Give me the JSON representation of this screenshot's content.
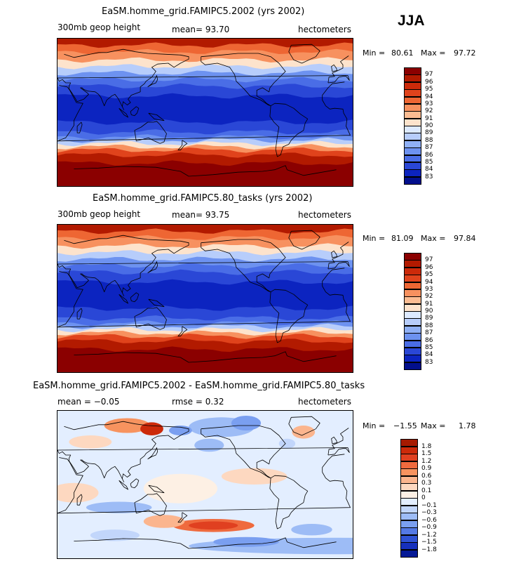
{
  "season": "JJA",
  "panels": [
    {
      "title": "EaSM.homme_grid.FAMIPC5.2002 (yrs 2002)",
      "left_label": "300mb geop height",
      "center_label": "mean=   93.70",
      "units": "hectometers",
      "min_label": "Min =",
      "min_value": "80.61",
      "max_label": "Max =",
      "max_value": "97.72",
      "levels": [
        "97",
        "96",
        "95",
        "94",
        "93",
        "92",
        "91",
        "90",
        "89",
        "88",
        "87",
        "86",
        "85",
        "84",
        "83"
      ],
      "colors": [
        "#8b0000",
        "#b21a00",
        "#cc2a0a",
        "#e0431c",
        "#ee6633",
        "#f7915f",
        "#fbbc92",
        "#fde3cc",
        "#ddeaff",
        "#b7cdfb",
        "#8fb0f6",
        "#6d92f0",
        "#4a6de6",
        "#2a47d6",
        "#0c24c0",
        "#020f8c"
      ],
      "bands": [
        {
          "lat": 90,
          "v": 1
        },
        {
          "lat": 82,
          "v": 4
        },
        {
          "lat": 74,
          "v": 5
        },
        {
          "lat": 64,
          "v": 7
        },
        {
          "lat": 56,
          "v": 9
        },
        {
          "lat": 48,
          "v": 11
        },
        {
          "lat": 40,
          "v": 12
        },
        {
          "lat": 32,
          "v": 13
        },
        {
          "lat": 20,
          "v": 14
        },
        {
          "lat": -12,
          "v": 13
        },
        {
          "lat": -24,
          "v": 12
        },
        {
          "lat": -30,
          "v": 11
        },
        {
          "lat": -34,
          "v": 9
        },
        {
          "lat": -38,
          "v": 7
        },
        {
          "lat": -42,
          "v": 5
        },
        {
          "lat": -46,
          "v": 3
        },
        {
          "lat": -52,
          "v": 1
        },
        {
          "lat": -62,
          "v": 0
        }
      ]
    },
    {
      "title": "EaSM.homme_grid.FAMIPC5.80_tasks (yrs 2002)",
      "left_label": "300mb geop height",
      "center_label": "mean=   93.75",
      "units": "hectometers",
      "min_label": "Min =",
      "min_value": "81.09",
      "max_label": "Max =",
      "max_value": "97.84",
      "levels": [
        "97",
        "96",
        "95",
        "94",
        "93",
        "92",
        "91",
        "90",
        "89",
        "88",
        "87",
        "86",
        "85",
        "84",
        "83"
      ],
      "colors": [
        "#8b0000",
        "#b21a00",
        "#cc2a0a",
        "#e0431c",
        "#ee6633",
        "#f7915f",
        "#fbbc92",
        "#fde3cc",
        "#ddeaff",
        "#b7cdfb",
        "#8fb0f6",
        "#6d92f0",
        "#4a6de6",
        "#2a47d6",
        "#0c24c0",
        "#020f8c"
      ],
      "bands": [
        {
          "lat": 90,
          "v": 1
        },
        {
          "lat": 82,
          "v": 4
        },
        {
          "lat": 74,
          "v": 5
        },
        {
          "lat": 64,
          "v": 7
        },
        {
          "lat": 56,
          "v": 9
        },
        {
          "lat": 48,
          "v": 11
        },
        {
          "lat": 40,
          "v": 12
        },
        {
          "lat": 32,
          "v": 13
        },
        {
          "lat": 20,
          "v": 14
        },
        {
          "lat": -12,
          "v": 13
        },
        {
          "lat": -24,
          "v": 12
        },
        {
          "lat": -30,
          "v": 11
        },
        {
          "lat": -34,
          "v": 9
        },
        {
          "lat": -38,
          "v": 7
        },
        {
          "lat": -42,
          "v": 5
        },
        {
          "lat": -46,
          "v": 3
        },
        {
          "lat": -52,
          "v": 1
        },
        {
          "lat": -62,
          "v": 0
        }
      ]
    },
    {
      "title": "EaSM.homme_grid.FAMIPC5.2002 - EaSM.homme_grid.FAMIPC5.80_tasks",
      "left_label": "mean =  −0.05",
      "center_label": "rmse =    0.32",
      "units": "hectometers",
      "min_label": "Min =",
      "min_value": "−1.55",
      "max_label": "Max =",
      "max_value": "1.78",
      "levels": [
        "1.8",
        "1.5",
        "1.2",
        "0.9",
        "0.6",
        "0.3",
        "0.1",
        "0",
        "−0.1",
        "−0.3",
        "−0.6",
        "−0.9",
        "−1.2",
        "−1.5",
        "−1.8"
      ],
      "colors": [
        "#a61a00",
        "#cc2a0a",
        "#e04020",
        "#ef6a3e",
        "#f7935f",
        "#fbb58e",
        "#fdd8c0",
        "#fdf0e4",
        "#e3eeff",
        "#c2d6fb",
        "#9dbcf6",
        "#7a9ff0",
        "#5479e4",
        "#2f52d4",
        "#1630bd",
        "#061a96"
      ],
      "background_index": 8,
      "blobs": [
        {
          "lon": -140,
          "lat": 70,
          "rx": 40,
          "ry": 12,
          "c": 10
        },
        {
          "lon": -110,
          "lat": 75,
          "rx": 18,
          "ry": 9,
          "c": 11
        },
        {
          "lon": 105,
          "lat": 72,
          "rx": 28,
          "ry": 9,
          "c": 4
        },
        {
          "lon": 135,
          "lat": 68,
          "rx": 14,
          "ry": 8,
          "c": 1
        },
        {
          "lon": 170,
          "lat": 66,
          "rx": 14,
          "ry": 6,
          "c": 11
        },
        {
          "lon": -40,
          "lat": 64,
          "rx": 14,
          "ry": 8,
          "c": 5
        },
        {
          "lon": -60,
          "lat": 50,
          "rx": 10,
          "ry": 6,
          "c": 9
        },
        {
          "lon": -155,
          "lat": 48,
          "rx": 18,
          "ry": 8,
          "c": 10
        },
        {
          "lon": 60,
          "lat": 52,
          "rx": 26,
          "ry": 8,
          "c": 6
        },
        {
          "lon": -20,
          "lat": 30,
          "rx": 60,
          "ry": 14,
          "c": 8
        },
        {
          "lon": -100,
          "lat": 10,
          "rx": 40,
          "ry": 10,
          "c": 6
        },
        {
          "lon": 170,
          "lat": -5,
          "rx": 45,
          "ry": 18,
          "c": 7
        },
        {
          "lon": 40,
          "lat": -10,
          "rx": 30,
          "ry": 12,
          "c": 6
        },
        {
          "lon": 95,
          "lat": -28,
          "rx": 40,
          "ry": 7,
          "c": 10
        },
        {
          "lon": -150,
          "lat": -50,
          "rx": 50,
          "ry": 8,
          "c": 3
        },
        {
          "lon": -150,
          "lat": -50,
          "rx": 30,
          "ry": 5,
          "c": 2
        },
        {
          "lon": 150,
          "lat": -45,
          "rx": 25,
          "ry": 8,
          "c": 5
        },
        {
          "lon": 90,
          "lat": -62,
          "rx": 30,
          "ry": 7,
          "c": 9
        },
        {
          "lon": -30,
          "lat": -55,
          "rx": 25,
          "ry": 7,
          "c": 10
        },
        {
          "lon": 0,
          "lat": -75,
          "rx": 180,
          "ry": 10,
          "c": 10
        },
        {
          "lon": -110,
          "lat": -70,
          "rx": 40,
          "ry": 6,
          "c": 11
        }
      ]
    }
  ],
  "chart_data": [
    {
      "type": "heatmap",
      "title": "EaSM.homme_grid.FAMIPC5.2002 (yrs 2002)",
      "variable": "300mb geop height",
      "units": "hectometers",
      "mean": 93.7,
      "min": 80.61,
      "max": 97.72,
      "season": "JJA",
      "contour_levels": [
        83,
        84,
        85,
        86,
        87,
        88,
        89,
        90,
        91,
        92,
        93,
        94,
        95,
        96,
        97
      ]
    },
    {
      "type": "heatmap",
      "title": "EaSM.homme_grid.FAMIPC5.80_tasks (yrs 2002)",
      "variable": "300mb geop height",
      "units": "hectometers",
      "mean": 93.75,
      "min": 81.09,
      "max": 97.84,
      "season": "JJA",
      "contour_levels": [
        83,
        84,
        85,
        86,
        87,
        88,
        89,
        90,
        91,
        92,
        93,
        94,
        95,
        96,
        97
      ]
    },
    {
      "type": "heatmap",
      "title": "EaSM.homme_grid.FAMIPC5.2002 - EaSM.homme_grid.FAMIPC5.80_tasks",
      "units": "hectometers",
      "mean": -0.05,
      "rmse": 0.32,
      "min": -1.55,
      "max": 1.78,
      "contour_levels": [
        -1.8,
        -1.5,
        -1.2,
        -0.9,
        -0.6,
        -0.3,
        -0.1,
        0,
        0.1,
        0.3,
        0.6,
        0.9,
        1.2,
        1.5,
        1.8
      ]
    }
  ]
}
